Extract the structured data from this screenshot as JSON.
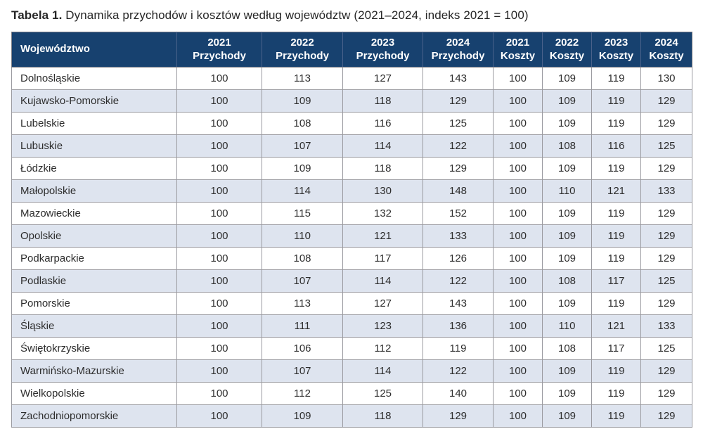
{
  "title": {
    "label": "Tabela 1.",
    "text": "Dynamika przychodów i kosztów według województw (2021–2024, indeks 2021 = 100)"
  },
  "table": {
    "header": [
      {
        "label": "Województwo"
      },
      {
        "year": "2021",
        "metric": "Przychody"
      },
      {
        "year": "2022",
        "metric": "Przychody"
      },
      {
        "year": "2023",
        "metric": "Przychody"
      },
      {
        "year": "2024",
        "metric": "Przychody"
      },
      {
        "year": "2021",
        "metric": "Koszty"
      },
      {
        "year": "2022",
        "metric": "Koszty"
      },
      {
        "year": "2023",
        "metric": "Koszty"
      },
      {
        "year": "2024",
        "metric": "Koszty"
      }
    ],
    "rows": [
      {
        "name": "Dolnośląskie",
        "values": [
          100,
          113,
          127,
          143,
          100,
          109,
          119,
          130
        ]
      },
      {
        "name": "Kujawsko-Pomorskie",
        "values": [
          100,
          109,
          118,
          129,
          100,
          109,
          119,
          129
        ]
      },
      {
        "name": "Lubelskie",
        "values": [
          100,
          108,
          116,
          125,
          100,
          109,
          119,
          129
        ]
      },
      {
        "name": "Lubuskie",
        "values": [
          100,
          107,
          114,
          122,
          100,
          108,
          116,
          125
        ]
      },
      {
        "name": "Łódzkie",
        "values": [
          100,
          109,
          118,
          129,
          100,
          109,
          119,
          129
        ]
      },
      {
        "name": "Małopolskie",
        "values": [
          100,
          114,
          130,
          148,
          100,
          110,
          121,
          133
        ]
      },
      {
        "name": "Mazowieckie",
        "values": [
          100,
          115,
          132,
          152,
          100,
          109,
          119,
          129
        ]
      },
      {
        "name": "Opolskie",
        "values": [
          100,
          110,
          121,
          133,
          100,
          109,
          119,
          129
        ]
      },
      {
        "name": "Podkarpackie",
        "values": [
          100,
          108,
          117,
          126,
          100,
          109,
          119,
          129
        ]
      },
      {
        "name": "Podlaskie",
        "values": [
          100,
          107,
          114,
          122,
          100,
          108,
          117,
          125
        ]
      },
      {
        "name": "Pomorskie",
        "values": [
          100,
          113,
          127,
          143,
          100,
          109,
          119,
          129
        ]
      },
      {
        "name": "Śląskie",
        "values": [
          100,
          111,
          123,
          136,
          100,
          110,
          121,
          133
        ]
      },
      {
        "name": "Świętokrzyskie",
        "values": [
          100,
          106,
          112,
          119,
          100,
          108,
          117,
          125
        ]
      },
      {
        "name": "Warmińsko-Mazurskie",
        "values": [
          100,
          107,
          114,
          122,
          100,
          109,
          119,
          129
        ]
      },
      {
        "name": "Wielkopolskie",
        "values": [
          100,
          112,
          125,
          140,
          100,
          109,
          119,
          129
        ]
      },
      {
        "name": "Zachodniopomorskie",
        "values": [
          100,
          109,
          118,
          129,
          100,
          109,
          119,
          129
        ]
      }
    ]
  },
  "colors": {
    "header_bg": "#17416f",
    "header_text": "#ffffff",
    "header_divider": "#4a628b",
    "row_alt_bg": "#dee4ef",
    "grid_line": "#9a9aa0",
    "outer_border": "#7f7f86",
    "body_text": "#2d2d2d"
  }
}
